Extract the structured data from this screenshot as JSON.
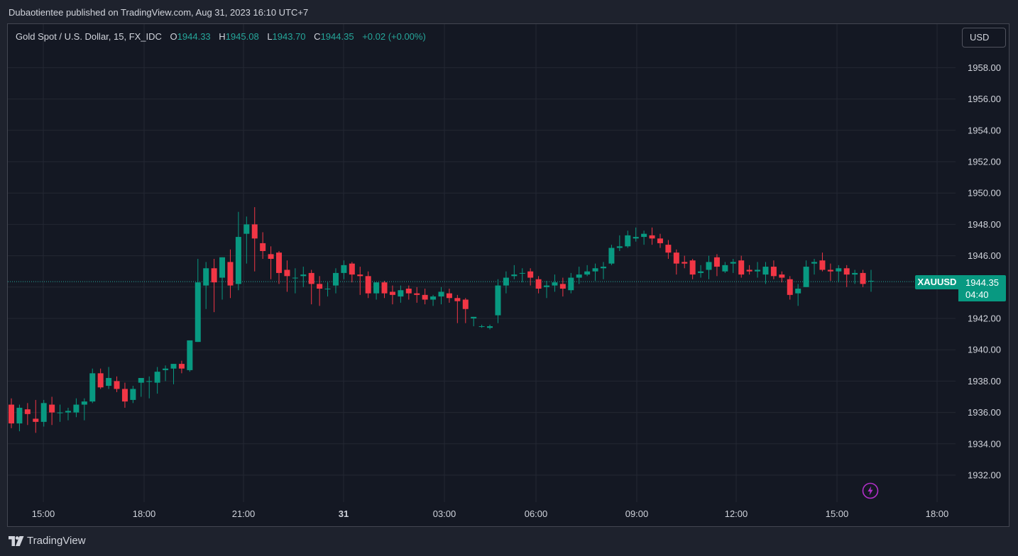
{
  "header": {
    "published_text": "Dubaotientee published on TradingView.com, Aug 31, 2023 16:10 UTC+7"
  },
  "legend": {
    "instrument": "Gold Spot / U.S. Dollar, 15, FX_IDC",
    "open_label": "O",
    "open": "1944.33",
    "high_label": "H",
    "high": "1945.08",
    "low_label": "L",
    "low": "1943.70",
    "close_label": "C",
    "close": "1944.35",
    "change": "+0.02 (+0.00%)"
  },
  "currency_button": {
    "label": "USD"
  },
  "price_tag": {
    "symbol": "XAUUSD",
    "price": "1944.35",
    "countdown": "04:40"
  },
  "footer": {
    "brand": "TradingView"
  },
  "icons": {
    "flash": "lightning-icon",
    "logo": "tradingview-logo-icon"
  },
  "colors": {
    "up": "#089981",
    "down": "#f23645",
    "background": "#141823",
    "grid": "#232733",
    "text": "#d1d4dc"
  },
  "chart_data": {
    "type": "candlestick",
    "yaxis": {
      "min": 1930.4,
      "max": 1960.2,
      "ticks": [
        "1958.00",
        "1956.00",
        "1954.00",
        "1952.00",
        "1950.00",
        "1948.00",
        "1946.00",
        "1944.00",
        "1942.00",
        "1940.00",
        "1938.00",
        "1936.00",
        "1934.00",
        "1932.00"
      ]
    },
    "xaxis": {
      "ticks": [
        "15:00",
        "18:00",
        "21:00",
        "31",
        "03:00",
        "06:00",
        "09:00",
        "12:00",
        "15:00",
        "18:00"
      ]
    },
    "current_price": 1944.35,
    "candles": [
      [
        1936.5,
        1936.9,
        1935.0,
        1935.3
      ],
      [
        1935.3,
        1936.5,
        1934.8,
        1936.3
      ],
      [
        1936.2,
        1936.6,
        1935.2,
        1935.9
      ],
      [
        1935.6,
        1936.8,
        1934.7,
        1935.4
      ],
      [
        1935.4,
        1936.8,
        1935.1,
        1936.6
      ],
      [
        1936.5,
        1937.0,
        1935.2,
        1936.0
      ],
      [
        1936.0,
        1936.5,
        1935.4,
        1936.0
      ],
      [
        1936.0,
        1936.3,
        1935.5,
        1936.1
      ],
      [
        1936.0,
        1936.9,
        1935.7,
        1936.5
      ],
      [
        1936.5,
        1936.9,
        1935.5,
        1936.7
      ],
      [
        1936.7,
        1938.8,
        1936.6,
        1938.5
      ],
      [
        1938.5,
        1938.8,
        1937.5,
        1937.6
      ],
      [
        1937.7,
        1938.9,
        1937.5,
        1938.2
      ],
      [
        1938.0,
        1938.3,
        1937.3,
        1937.5
      ],
      [
        1937.5,
        1937.9,
        1936.3,
        1936.7
      ],
      [
        1936.8,
        1937.7,
        1936.6,
        1937.5
      ],
      [
        1937.9,
        1938.2,
        1937.0,
        1938.2
      ],
      [
        1938.0,
        1938.3,
        1936.9,
        1938.0
      ],
      [
        1937.9,
        1938.9,
        1937.2,
        1938.6
      ],
      [
        1938.7,
        1939.0,
        1938.0,
        1938.8
      ],
      [
        1938.8,
        1939.1,
        1937.8,
        1939.1
      ],
      [
        1939.1,
        1939.3,
        1938.5,
        1938.8
      ],
      [
        1938.7,
        1940.5,
        1938.6,
        1940.6
      ],
      [
        1940.5,
        1945.8,
        1940.5,
        1944.3
      ],
      [
        1944.1,
        1945.6,
        1942.6,
        1945.2
      ],
      [
        1945.2,
        1945.8,
        1942.4,
        1944.3
      ],
      [
        1944.6,
        1945.9,
        1943.2,
        1945.9
      ],
      [
        1945.6,
        1946.4,
        1943.3,
        1944.1
      ],
      [
        1944.2,
        1948.8,
        1943.8,
        1947.2
      ],
      [
        1947.4,
        1948.5,
        1945.5,
        1948.0
      ],
      [
        1948.0,
        1949.1,
        1945.0,
        1947.1
      ],
      [
        1946.8,
        1947.5,
        1945.8,
        1946.3
      ],
      [
        1946.1,
        1946.6,
        1944.5,
        1945.8
      ],
      [
        1946.2,
        1946.3,
        1944.2,
        1944.9
      ],
      [
        1945.1,
        1945.7,
        1943.7,
        1944.7
      ],
      [
        1944.6,
        1945.2,
        1943.6,
        1944.6
      ],
      [
        1944.7,
        1945.3,
        1944.0,
        1944.8
      ],
      [
        1944.9,
        1945.1,
        1942.9,
        1944.2
      ],
      [
        1944.2,
        1944.7,
        1942.8,
        1943.9
      ],
      [
        1943.9,
        1944.3,
        1943.4,
        1943.9
      ],
      [
        1944.1,
        1945.2,
        1943.6,
        1944.9
      ],
      [
        1944.9,
        1945.7,
        1944.5,
        1945.4
      ],
      [
        1945.5,
        1945.6,
        1944.3,
        1944.8
      ],
      [
        1944.8,
        1945.3,
        1943.5,
        1944.7
      ],
      [
        1944.7,
        1945.0,
        1943.3,
        1943.6
      ],
      [
        1943.6,
        1944.3,
        1943.2,
        1944.3
      ],
      [
        1944.3,
        1944.4,
        1943.3,
        1943.6
      ],
      [
        1943.7,
        1944.1,
        1942.9,
        1943.5
      ],
      [
        1943.4,
        1944.1,
        1943.0,
        1943.8
      ],
      [
        1943.9,
        1944.1,
        1943.2,
        1943.6
      ],
      [
        1943.6,
        1944.0,
        1943.0,
        1943.5
      ],
      [
        1943.5,
        1943.9,
        1942.9,
        1943.2
      ],
      [
        1943.2,
        1943.5,
        1942.8,
        1943.4
      ],
      [
        1943.4,
        1944.0,
        1942.9,
        1943.7
      ],
      [
        1943.6,
        1943.9,
        1943.0,
        1943.3
      ],
      [
        1943.3,
        1943.5,
        1941.7,
        1943.1
      ],
      [
        1943.2,
        1943.3,
        1941.7,
        1942.6
      ],
      [
        1942.0,
        1942.1,
        1941.5,
        1942.1
      ],
      [
        1941.5,
        1941.6,
        1941.4,
        1941.5
      ],
      [
        1941.4,
        1941.6,
        1941.3,
        1941.5
      ],
      [
        1942.2,
        1944.5,
        1941.7,
        1944.1
      ],
      [
        1944.1,
        1945.0,
        1943.6,
        1944.6
      ],
      [
        1944.7,
        1945.4,
        1944.5,
        1944.8
      ],
      [
        1944.9,
        1945.2,
        1944.3,
        1944.9
      ],
      [
        1945.0,
        1945.2,
        1944.1,
        1944.6
      ],
      [
        1944.5,
        1944.7,
        1943.6,
        1943.9
      ],
      [
        1944.0,
        1944.4,
        1943.3,
        1944.1
      ],
      [
        1944.1,
        1944.8,
        1943.7,
        1944.3
      ],
      [
        1944.2,
        1944.6,
        1943.4,
        1943.9
      ],
      [
        1943.8,
        1944.9,
        1943.6,
        1944.6
      ],
      [
        1944.6,
        1945.3,
        1944.2,
        1944.8
      ],
      [
        1944.8,
        1945.4,
        1944.7,
        1945.0
      ],
      [
        1945.0,
        1945.5,
        1944.4,
        1945.2
      ],
      [
        1945.2,
        1945.6,
        1944.5,
        1945.3
      ],
      [
        1945.5,
        1946.7,
        1945.4,
        1946.5
      ],
      [
        1946.5,
        1947.3,
        1946.3,
        1946.6
      ],
      [
        1946.6,
        1947.6,
        1946.5,
        1947.3
      ],
      [
        1947.1,
        1947.8,
        1946.9,
        1947.2
      ],
      [
        1947.2,
        1947.6,
        1946.7,
        1947.4
      ],
      [
        1947.3,
        1947.8,
        1946.7,
        1947.1
      ],
      [
        1947.1,
        1947.4,
        1946.5,
        1946.8
      ],
      [
        1946.7,
        1947.0,
        1945.8,
        1946.2
      ],
      [
        1946.2,
        1946.4,
        1944.8,
        1945.5
      ],
      [
        1945.6,
        1946.0,
        1945.2,
        1945.5
      ],
      [
        1945.7,
        1945.8,
        1944.5,
        1944.8
      ],
      [
        1944.9,
        1945.4,
        1944.6,
        1945.0
      ],
      [
        1945.1,
        1946.0,
        1944.5,
        1945.6
      ],
      [
        1945.9,
        1946.1,
        1944.7,
        1945.3
      ],
      [
        1945.0,
        1945.6,
        1944.9,
        1945.4
      ],
      [
        1945.5,
        1945.8,
        1944.9,
        1945.6
      ],
      [
        1945.7,
        1946.0,
        1944.6,
        1944.8
      ],
      [
        1945.1,
        1945.4,
        1944.8,
        1945.0
      ],
      [
        1945.0,
        1945.6,
        1944.6,
        1945.1
      ],
      [
        1944.8,
        1945.6,
        1944.2,
        1945.3
      ],
      [
        1945.3,
        1945.7,
        1944.5,
        1944.7
      ],
      [
        1944.8,
        1945.0,
        1944.3,
        1944.6
      ],
      [
        1944.5,
        1944.7,
        1943.2,
        1943.5
      ],
      [
        1943.6,
        1944.2,
        1942.8,
        1943.9
      ],
      [
        1944.0,
        1945.7,
        1944.0,
        1945.3
      ],
      [
        1945.5,
        1945.8,
        1944.8,
        1945.6
      ],
      [
        1945.7,
        1946.2,
        1945.0,
        1945.1
      ],
      [
        1945.1,
        1945.5,
        1944.4,
        1945.0
      ],
      [
        1945.0,
        1945.4,
        1944.3,
        1945.2
      ],
      [
        1945.2,
        1945.4,
        1944.0,
        1944.8
      ],
      [
        1944.8,
        1945.1,
        1944.2,
        1944.9
      ],
      [
        1944.9,
        1945.1,
        1944.0,
        1944.2
      ],
      [
        1944.4,
        1945.1,
        1943.7,
        1944.4
      ]
    ]
  }
}
